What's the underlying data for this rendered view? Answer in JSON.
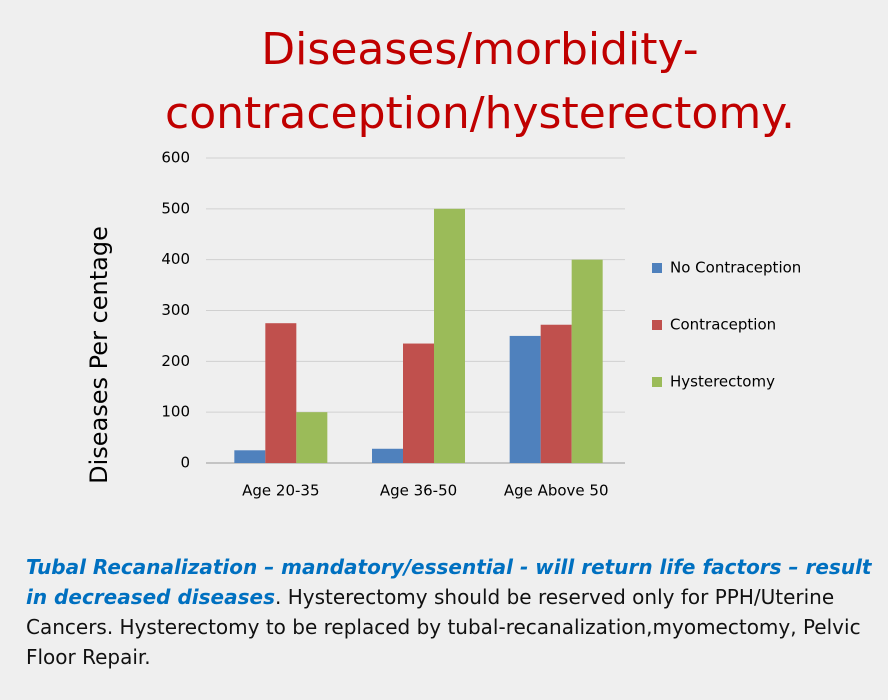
{
  "chart_data": {
    "type": "bar",
    "title": "Diseases/morbidity-contraception/hysterectomy.",
    "y_label": "Diseases  Per centage",
    "categories": [
      "Age 20-35",
      "Age 36-50",
      "Age Above 50"
    ],
    "series": [
      {
        "name": "No Contraception",
        "color": "#4f81bd",
        "values": [
          25,
          28,
          250
        ]
      },
      {
        "name": "Contraception",
        "color": "#c0504d",
        "values": [
          275,
          235,
          272
        ]
      },
      {
        "name": "Hysterectomy",
        "color": "#9bbb59",
        "values": [
          100,
          500,
          400
        ]
      }
    ],
    "ylim": [
      0,
      600
    ],
    "yticks": [
      0,
      100,
      200,
      300,
      400,
      500,
      600
    ],
    "grid": true,
    "legend": "right",
    "annotation": {
      "emphasis": "Tubal Recanalization – mandatory/essential - will return life factors – result in decreased diseases",
      "text": ". Hysterectomy should be reserved only for PPH/Uterine Cancers. Hysterectomy to  be replaced by tubal-recanalization,myomectomy, Pelvic Floor Repair."
    }
  }
}
